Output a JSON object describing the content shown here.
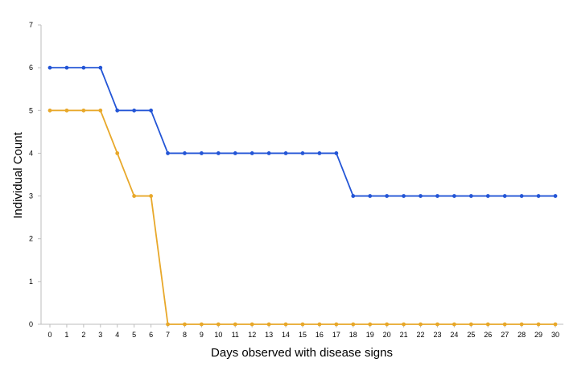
{
  "chart_data": {
    "type": "line",
    "title": "",
    "xlabel": "Days observed with disease signs",
    "ylabel": "Individual Count",
    "x": [
      0,
      1,
      2,
      3,
      4,
      5,
      6,
      7,
      8,
      9,
      10,
      11,
      12,
      13,
      14,
      15,
      16,
      17,
      18,
      19,
      20,
      21,
      22,
      23,
      24,
      25,
      26,
      27,
      28,
      29,
      30
    ],
    "xlim": [
      0,
      30
    ],
    "ylim": [
      0,
      7
    ],
    "yticks": [
      0,
      1,
      2,
      3,
      4,
      5,
      6,
      7
    ],
    "grid": false,
    "legend": "none",
    "series": [
      {
        "color": "#2355D6",
        "values": [
          6,
          6,
          6,
          6,
          5,
          5,
          5,
          4,
          4,
          4,
          4,
          4,
          4,
          4,
          4,
          4,
          4,
          4,
          3,
          3,
          3,
          3,
          3,
          3,
          3,
          3,
          3,
          3,
          3,
          3,
          3
        ]
      },
      {
        "color": "#E8A82A",
        "values": [
          5,
          5,
          5,
          5,
          4,
          3,
          3,
          0,
          0,
          0,
          0,
          0,
          0,
          0,
          0,
          0,
          0,
          0,
          0,
          0,
          0,
          0,
          0,
          0,
          0,
          0,
          0,
          0,
          0,
          0,
          0
        ]
      }
    ]
  }
}
